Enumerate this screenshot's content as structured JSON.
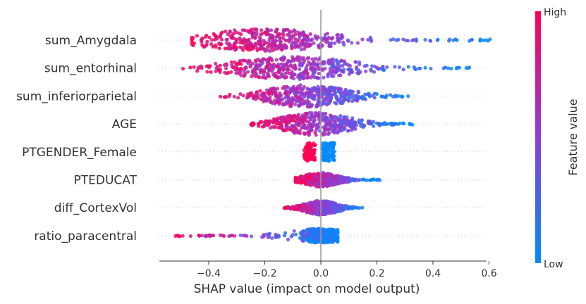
{
  "chart_data": {
    "type": "scatter",
    "subtype": "shap-beeswarm",
    "title": "",
    "xlabel": "SHAP value (impact on model output)",
    "ylabel": "",
    "xlim": [
      -0.57,
      0.71
    ],
    "xticks": [
      -0.4,
      -0.2,
      0.0,
      0.2,
      0.4,
      0.6
    ],
    "xtick_labels": [
      "−0.4",
      "−0.2",
      "0.0",
      "0.2",
      "0.4",
      "0.6"
    ],
    "features": [
      {
        "name": "sum_Amygdala",
        "min": -0.46,
        "max": 0.63,
        "low_side": "right",
        "core": [
          -0.22,
          0.3
        ],
        "peak": -0.2
      },
      {
        "name": "sum_entorhinal",
        "min": -0.5,
        "max": 0.53,
        "low_side": "right",
        "core": [
          -0.28,
          0.3
        ],
        "peak": -0.1
      },
      {
        "name": "sum_inferiorparietal",
        "min": -0.36,
        "max": 0.32,
        "low_side": "right",
        "core": [
          -0.22,
          0.18
        ],
        "peak": -0.05
      },
      {
        "name": "AGE",
        "min": -0.25,
        "max": 0.33,
        "low_side": "right",
        "core": [
          -0.2,
          0.2
        ],
        "peak": -0.02
      },
      {
        "name": "PTGENDER_Female",
        "min": -0.06,
        "max": 0.05,
        "low_side": "right",
        "core": [
          -0.06,
          0.05
        ],
        "peak": 0.0,
        "binary": true
      },
      {
        "name": "PTEDUCAT",
        "min": -0.09,
        "max": 0.21,
        "low_side": "right",
        "core": [
          -0.09,
          0.12
        ],
        "peak": 0.0
      },
      {
        "name": "diff_CortexVol",
        "min": -0.13,
        "max": 0.15,
        "low_side": "right",
        "core": [
          -0.1,
          0.1
        ],
        "peak": 0.0
      },
      {
        "name": "ratio_paracentral",
        "min": -0.52,
        "max": 0.06,
        "low_side": "right",
        "core": [
          -0.08,
          0.05
        ],
        "peak": 0.0
      }
    ],
    "colorbar": {
      "title": "Feature value",
      "high_label": "High",
      "low_label": "Low",
      "high_color": "#ff0052",
      "low_color": "#008bfb"
    },
    "reference_line_x": 0.0,
    "grid": false
  }
}
